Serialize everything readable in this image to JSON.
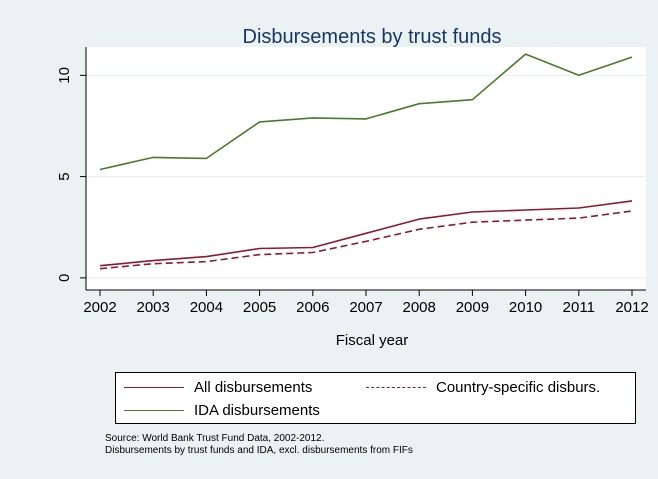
{
  "chart_data": {
    "type": "line",
    "title": "Disbursements by trust funds",
    "xlabel": "Fiscal year",
    "ylabel": "",
    "x": [
      2002,
      2003,
      2004,
      2005,
      2006,
      2007,
      2008,
      2009,
      2010,
      2011,
      2012
    ],
    "ylim": [
      -0.6,
      11.4
    ],
    "yticks": [
      0,
      5,
      10
    ],
    "grid": true,
    "legend_position": "bottom",
    "series": [
      {
        "name": "All disbursements",
        "color": "#8b1a2e",
        "dash": "solid",
        "values": [
          0.6,
          0.85,
          1.05,
          1.45,
          1.5,
          2.2,
          2.9,
          3.25,
          3.35,
          3.45,
          3.8
        ]
      },
      {
        "name": "Country-specific disburs.",
        "color": "#8b1a2e",
        "dash": "dashed",
        "values": [
          0.45,
          0.7,
          0.8,
          1.15,
          1.25,
          1.8,
          2.4,
          2.75,
          2.85,
          2.95,
          3.3
        ]
      },
      {
        "name": "IDA disbursements",
        "color": "#4a7a2e",
        "dash": "solid",
        "values": [
          5.35,
          5.95,
          5.9,
          7.7,
          7.9,
          7.85,
          8.6,
          8.8,
          11.05,
          10.0,
          10.9
        ]
      }
    ]
  },
  "notes": [
    "Source: World Bank Trust Fund Data, 2002-2012.",
    "Disbursements by trust funds and IDA, excl. disbursements from FIFs"
  ]
}
